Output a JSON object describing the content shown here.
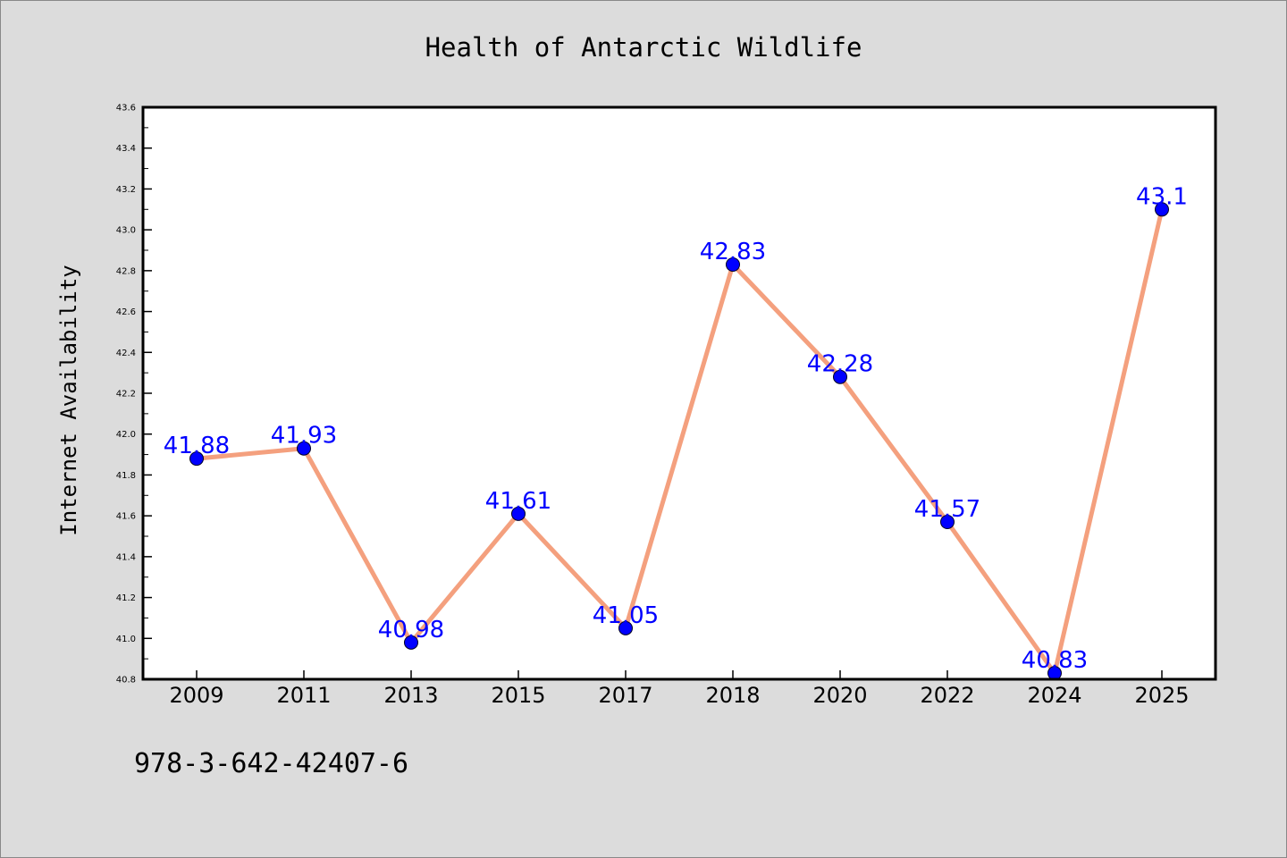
{
  "chart_data": {
    "type": "line",
    "title": "Health of Antarctic Wildlife",
    "xlabel": "",
    "ylabel": "Internet Availability",
    "categories": [
      "2009",
      "2011",
      "2013",
      "2015",
      "2017",
      "2018",
      "2020",
      "2022",
      "2024",
      "2025"
    ],
    "values": [
      41.88,
      41.93,
      40.98,
      41.61,
      41.05,
      42.83,
      42.28,
      41.57,
      40.83,
      43.1
    ],
    "data_labels": [
      "41.88",
      "41.93",
      "40.98",
      "41.61",
      "41.05",
      "42.83",
      "42.28",
      "41.57",
      "40.83",
      "43.1"
    ],
    "ylim": [
      40.8,
      43.6
    ],
    "yticks": [
      "40.8",
      "41.0",
      "41.2",
      "41.4",
      "41.6",
      "41.8",
      "42.0",
      "42.2",
      "42.4",
      "42.6",
      "42.8",
      "43.0",
      "43.2",
      "43.4",
      "43.6"
    ],
    "grid": false,
    "line_color": "#f4a07e",
    "marker_color": "#0000ff",
    "label_color": "#0000ff",
    "background_color": "#dcdcdc",
    "plot_background_color": "#ffffff"
  },
  "footer": {
    "text": "978-3-642-42407-6"
  }
}
